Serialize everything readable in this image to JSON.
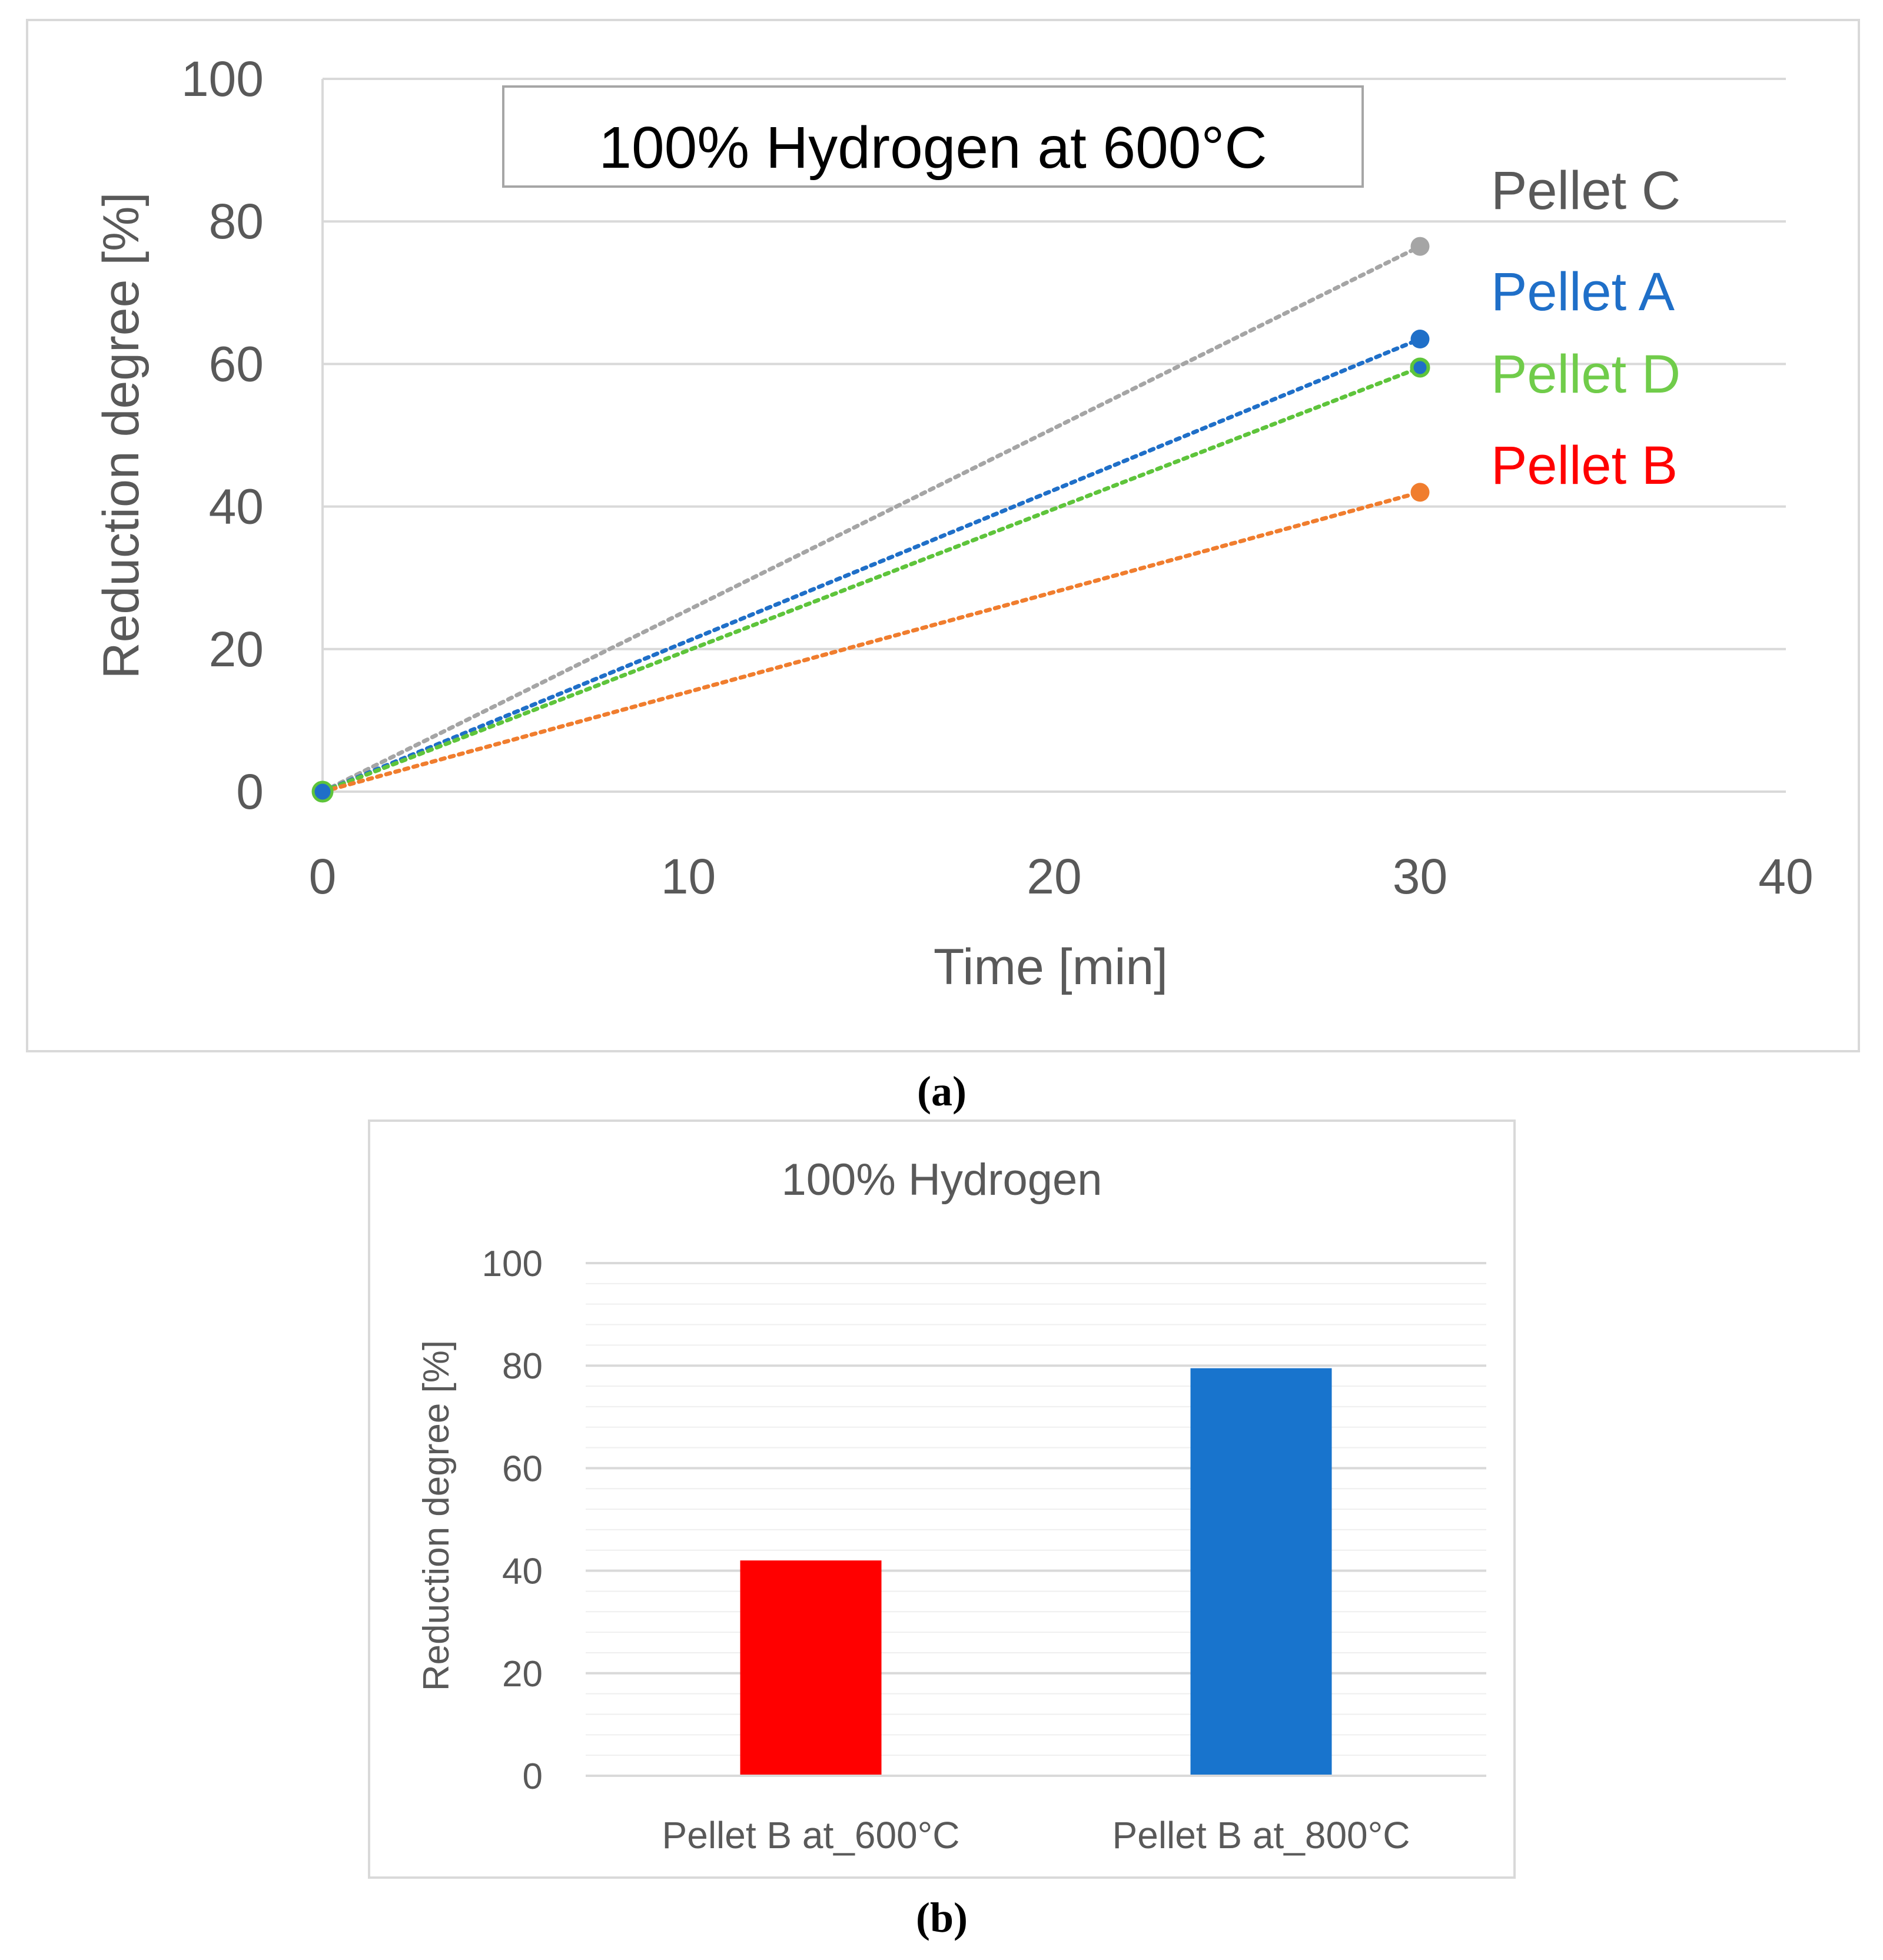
{
  "chart_data": [
    {
      "type": "line",
      "panel_label": "(a)",
      "title": "100% Hydrogen at 600°C",
      "xlabel": "Time [min]",
      "ylabel": "Reduction degree [%]",
      "xlim": [
        0,
        40
      ],
      "ylim": [
        0,
        100
      ],
      "xticks": [
        "0",
        "10",
        "20",
        "30",
        "40"
      ],
      "yticks": [
        "0",
        "20",
        "40",
        "60",
        "80",
        "100"
      ],
      "grid": true,
      "line_style": "dotted",
      "series": [
        {
          "name": "Pellet C",
          "color": "#a5a5a5",
          "label_color": "#595959",
          "x": [
            0,
            30
          ],
          "y": [
            0,
            76.5
          ]
        },
        {
          "name": "Pellet A",
          "color": "#1f6fc8",
          "label_color": "#1f6fc8",
          "x": [
            0,
            30
          ],
          "y": [
            0,
            63.5
          ]
        },
        {
          "name": "Pellet  D",
          "color": "#5ec43b",
          "label_color": "#70cc4a",
          "x": [
            0,
            30
          ],
          "y": [
            0,
            59.5
          ]
        },
        {
          "name": "Pellet B",
          "color": "#f07d2e",
          "label_color": "#ff0000",
          "x": [
            0,
            30
          ],
          "y": [
            0,
            42
          ]
        }
      ]
    },
    {
      "type": "bar",
      "panel_label": "(b)",
      "title": "100% Hydrogen",
      "xlabel": "",
      "ylabel": "Reduction degree [%]",
      "ylim": [
        0,
        100
      ],
      "yticks": [
        "0",
        "20",
        "40",
        "60",
        "80",
        "100"
      ],
      "grid": true,
      "categories": [
        "Pellet B at_600°C",
        "Pellet B at_800°C"
      ],
      "values": [
        42,
        79.5
      ],
      "colors": [
        "#ff0000",
        "#1874cd"
      ]
    }
  ]
}
